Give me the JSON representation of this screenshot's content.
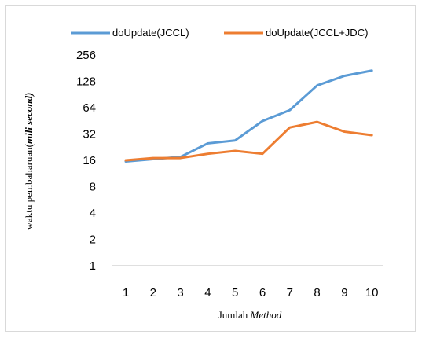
{
  "chart_data": {
    "type": "line",
    "yscale": "log2",
    "ylim": [
      1,
      256
    ],
    "yticks": [
      1,
      2,
      4,
      8,
      16,
      32,
      64,
      128,
      256
    ],
    "x": [
      1,
      2,
      3,
      4,
      5,
      6,
      7,
      8,
      9,
      10
    ],
    "xlabel_plain": "Jumlah ",
    "xlabel_italic": "Method",
    "ylabel_plain": "waktu pembaharuan(",
    "ylabel_italic": "mili second)",
    "legend_position": "top",
    "grid": false,
    "series": [
      {
        "name": "doUpdate(JCCL)",
        "color": "#5b9bd5",
        "values": [
          15.5,
          16.5,
          17.5,
          25,
          27,
          45,
          60,
          115,
          148,
          170
        ]
      },
      {
        "name": "doUpdate(JCCL+JDC)",
        "color": "#ed7d31",
        "values": [
          16,
          17,
          17,
          19,
          20.5,
          19,
          38,
          44,
          34,
          31
        ]
      }
    ]
  }
}
